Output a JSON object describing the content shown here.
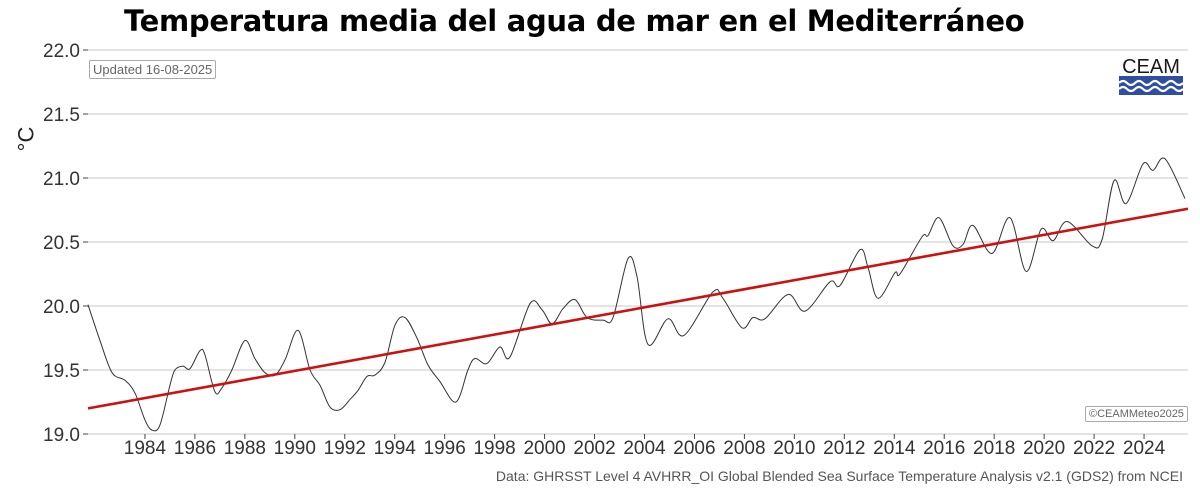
{
  "chart_data": {
    "type": "line",
    "title": "Temperatura media del agua de mar en el Mediterráneo",
    "xlabel": "",
    "ylabel": "°C",
    "xlim": [
      1981.72,
      2025.76
    ],
    "ylim": [
      19.0,
      22.0
    ],
    "grid": "horizontal",
    "x_ticks": [
      "1984",
      "1986",
      "1988",
      "1990",
      "1992",
      "1994",
      "1996",
      "1998",
      "2000",
      "2002",
      "2004",
      "2006",
      "2008",
      "2010",
      "2012",
      "2014",
      "2016",
      "2018",
      "2020",
      "2022",
      "2024"
    ],
    "y_ticks": [
      "19.0",
      "19.5",
      "20.0",
      "20.5",
      "21.0",
      "21.5",
      "22.0"
    ],
    "series": [
      {
        "color": "#333333",
        "x": [
          1981.72,
          1982.2,
          1982.68,
          1983.2,
          1983.6,
          1984.0,
          1984.28,
          1984.6,
          1985.0,
          1985.2,
          1985.52,
          1985.8,
          1986.2,
          1986.4,
          1986.8,
          1987.08,
          1987.48,
          1988.0,
          1988.4,
          1988.8,
          1989.21,
          1989.61,
          1990.13,
          1990.61,
          1991.01,
          1991.41,
          1991.81,
          1992.21,
          1992.53,
          1992.89,
          1993.21,
          1993.61,
          1994.01,
          1994.41,
          1994.89,
          1995.33,
          1995.81,
          1996.45,
          1996.93,
          1997.21,
          1997.69,
          1998.21,
          1998.61,
          1999.42,
          1999.9,
          2000.3,
          2000.74,
          2001.22,
          2001.7,
          2002.34,
          2002.74,
          2003.34,
          2003.7,
          2004.14,
          2004.94,
          2005.58,
          2006.74,
          2007.14,
          2007.9,
          2008.34,
          2008.82,
          2009.75,
          2010.43,
          2011.43,
          2011.83,
          2012.63,
          2012.95,
          2013.35,
          2014.03,
          2014.23,
          2015.11,
          2015.35,
          2015.79,
          2016.35,
          2016.75,
          2017.15,
          2017.91,
          2018.63,
          2019.28,
          2019.88,
          2020.36,
          2020.92,
          2021.92,
          2022.32,
          2022.8,
          2023.28,
          2023.96,
          2024.36,
          2024.84,
          2025.64
        ],
        "y": [
          20.01,
          19.73,
          19.48,
          19.42,
          19.32,
          19.11,
          19.03,
          19.07,
          19.38,
          19.5,
          19.53,
          19.51,
          19.65,
          19.62,
          19.33,
          19.36,
          19.5,
          19.73,
          19.59,
          19.48,
          19.46,
          19.58,
          19.81,
          19.5,
          19.38,
          19.21,
          19.19,
          19.27,
          19.34,
          19.45,
          19.46,
          19.56,
          19.85,
          19.91,
          19.75,
          19.54,
          19.41,
          19.25,
          19.5,
          19.59,
          19.55,
          19.68,
          19.6,
          20.02,
          19.97,
          19.86,
          19.98,
          20.05,
          19.91,
          19.89,
          19.91,
          20.37,
          20.23,
          19.7,
          19.9,
          19.77,
          20.11,
          20.06,
          19.83,
          19.91,
          19.9,
          20.09,
          19.96,
          20.19,
          20.16,
          20.44,
          20.3,
          20.06,
          20.26,
          20.25,
          20.54,
          20.55,
          20.69,
          20.47,
          20.48,
          20.63,
          20.41,
          20.69,
          20.27,
          20.6,
          20.51,
          20.66,
          20.47,
          20.52,
          20.98,
          20.8,
          21.11,
          21.06,
          21.15,
          20.84
        ]
      },
      {
        "color": "#cc1111",
        "x": [
          1981.72,
          2025.76
        ],
        "y": [
          19.2,
          20.76
        ]
      }
    ]
  },
  "annotations": {
    "updated": "Updated 16-08-2025",
    "copyright": "©CEAMMeteo2025",
    "source": "Data: GHRSST Level 4 AVHRR_OI Global Blended Sea Surface Temperature Analysis v2.1 (GDS2) from NCEI"
  },
  "logo": {
    "text": "CEAM",
    "colors": [
      "#1a1a1a",
      "#2f4ea0",
      "#ffffff"
    ]
  }
}
